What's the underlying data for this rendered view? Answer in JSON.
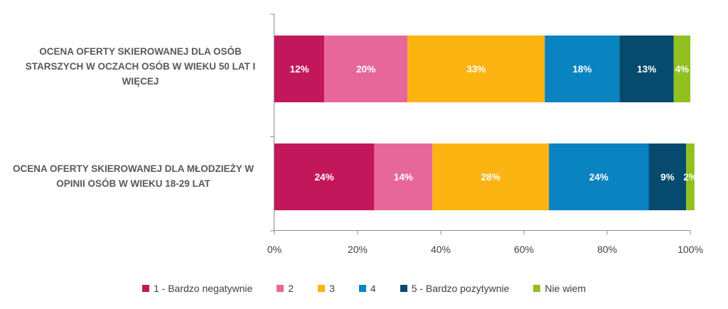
{
  "chart_data": {
    "type": "bar",
    "orientation": "horizontal",
    "stacked": "percent",
    "categories": [
      "OCENA OFERTY SKIEROWANEJ DLA OSÓB STARSZYCH W OCZACH OSÓB W WIEKU 50 LAT I WIĘCEJ",
      "OCENA OFERTY SKIEROWANEJ DLA MŁODZIEŻY W OPINII OSÓB W WIEKU 18-29 LAT"
    ],
    "series": [
      {
        "name": "1 - Bardzo negatywnie",
        "color": "#C2185B",
        "values": [
          12,
          24
        ],
        "labels": [
          "12%",
          "24%"
        ]
      },
      {
        "name": "2",
        "color": "#E8679A",
        "values": [
          20,
          14
        ],
        "labels": [
          "20%",
          "14%"
        ]
      },
      {
        "name": "3",
        "color": "#FBB412",
        "values": [
          33,
          28
        ],
        "labels": [
          "33%",
          "28%"
        ]
      },
      {
        "name": "4",
        "color": "#0A83C1",
        "values": [
          18,
          24
        ],
        "labels": [
          "18%",
          "24%"
        ]
      },
      {
        "name": "5 - Bardzo pozytywnie",
        "color": "#064A6E",
        "values": [
          13,
          9
        ],
        "labels": [
          "13%",
          "9%"
        ]
      },
      {
        "name": "Nie wiem",
        "color": "#92C01F",
        "values": [
          4,
          2
        ],
        "labels": [
          "4%",
          "2%"
        ]
      }
    ],
    "xlim": [
      0,
      100
    ],
    "ticks": [
      "0%",
      "20%",
      "40%",
      "60%",
      "80%",
      "100%"
    ],
    "legend_position": "bottom",
    "grid": false
  }
}
